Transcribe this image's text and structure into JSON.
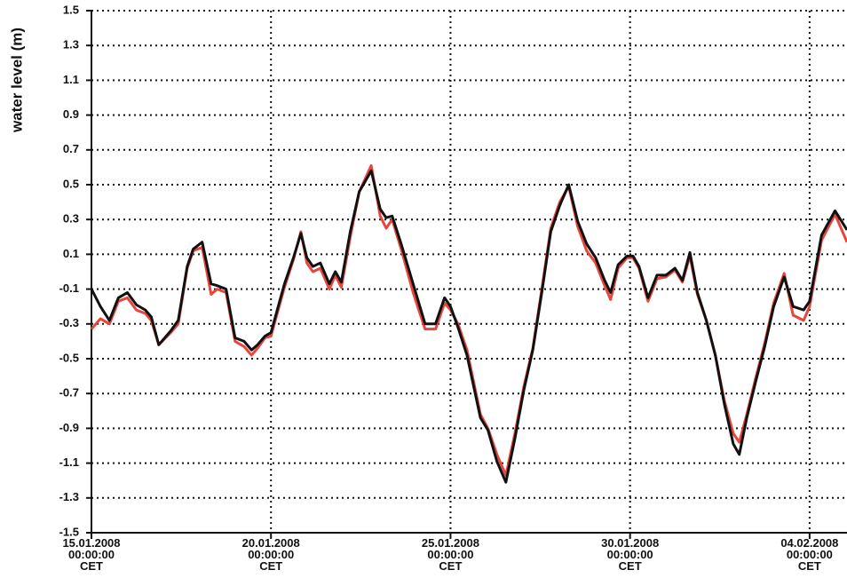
{
  "chart_data": {
    "type": "line",
    "ylabel": "water level (m)",
    "x": [
      "2008-01-15T00:00",
      "2008-01-15T06:00",
      "2008-01-15T12:00",
      "2008-01-15T18:00",
      "2008-01-16T00:00",
      "2008-01-16T06:00",
      "2008-01-16T12:00",
      "2008-01-16T16:00",
      "2008-01-16T21:00",
      "2008-01-17T05:00",
      "2008-01-17T10:00",
      "2008-01-17T16:00",
      "2008-01-17T20:00",
      "2008-01-18T02:00",
      "2008-01-18T08:00",
      "2008-01-18T12:00",
      "2008-01-18T18:00",
      "2008-01-19T00:00",
      "2008-01-19T06:00",
      "2008-01-19T11:00",
      "2008-01-19T15:00",
      "2008-01-19T20:00",
      "2008-01-20T00:00",
      "2008-01-20T09:00",
      "2008-01-20T15:00",
      "2008-01-20T20:00",
      "2008-01-21T00:00",
      "2008-01-21T04:00",
      "2008-01-21T09:00",
      "2008-01-21T15:00",
      "2008-01-21T19:00",
      "2008-01-21T23:00",
      "2008-01-22T05:00",
      "2008-01-22T11:00",
      "2008-01-22T19:00",
      "2008-01-23T01:00",
      "2008-01-23T05:00",
      "2008-01-23T09:00",
      "2008-01-23T15:00",
      "2008-01-23T23:00",
      "2008-01-24T07:00",
      "2008-01-24T14:00",
      "2008-01-24T20:00",
      "2008-01-25T00:00",
      "2008-01-25T05:00",
      "2008-01-25T11:00",
      "2008-01-25T20:00",
      "2008-01-26T01:00",
      "2008-01-26T07:00",
      "2008-01-26T13:00",
      "2008-01-26T19:00",
      "2008-01-27T01:00",
      "2008-01-27T07:00",
      "2008-01-27T13:00",
      "2008-01-27T19:00",
      "2008-01-28T01:00",
      "2008-01-28T07:00",
      "2008-01-28T13:00",
      "2008-01-28T19:00",
      "2008-01-29T01:00",
      "2008-01-29T07:00",
      "2008-01-29T11:00",
      "2008-01-29T16:00",
      "2008-01-29T22:00",
      "2008-01-30T02:00",
      "2008-01-30T06:00",
      "2008-01-30T12:00",
      "2008-01-30T18:00",
      "2008-01-31T00:00",
      "2008-01-31T06:00",
      "2008-01-31T11:00",
      "2008-01-31T16:00",
      "2008-01-31T21:00",
      "2008-02-01T03:00",
      "2008-02-01T09:00",
      "2008-02-01T15:00",
      "2008-02-01T21:00",
      "2008-02-02T01:00",
      "2008-02-02T06:00",
      "2008-02-02T12:00",
      "2008-02-02T18:00",
      "2008-02-03T00:00",
      "2008-02-03T07:00",
      "2008-02-03T13:00",
      "2008-02-03T20:00",
      "2008-02-04T00:00",
      "2008-02-04T08:00",
      "2008-02-04T17:00",
      "2008-02-05T01:00"
    ],
    "series": [
      {
        "color": "#e8453c",
        "values": [
          -0.33,
          -0.27,
          -0.3,
          -0.17,
          -0.15,
          -0.22,
          -0.24,
          -0.28,
          -0.42,
          -0.35,
          -0.3,
          0.02,
          0.12,
          0.14,
          -0.13,
          -0.1,
          -0.12,
          -0.4,
          -0.43,
          -0.48,
          -0.44,
          -0.38,
          -0.37,
          -0.09,
          0.07,
          0.23,
          0.05,
          0.0,
          0.02,
          -0.1,
          -0.02,
          -0.09,
          0.2,
          0.46,
          0.61,
          0.32,
          0.25,
          0.3,
          0.13,
          -0.12,
          -0.33,
          -0.33,
          -0.18,
          -0.22,
          -0.3,
          -0.45,
          -0.82,
          -0.9,
          -1.05,
          -1.17,
          -0.93,
          -0.66,
          -0.44,
          -0.1,
          0.25,
          0.4,
          0.49,
          0.26,
          0.12,
          0.05,
          -0.08,
          -0.16,
          0.02,
          0.08,
          0.08,
          0.02,
          -0.17,
          -0.04,
          -0.03,
          0.01,
          -0.06,
          0.09,
          -0.13,
          -0.28,
          -0.48,
          -0.74,
          -0.93,
          -0.98,
          -0.82,
          -0.61,
          -0.41,
          -0.18,
          -0.01,
          -0.25,
          -0.28,
          -0.2,
          0.18,
          0.33,
          0.17
        ]
      },
      {
        "color": "#111111",
        "values": [
          -0.1,
          -0.2,
          -0.28,
          -0.15,
          -0.12,
          -0.19,
          -0.22,
          -0.26,
          -0.42,
          -0.34,
          -0.28,
          0.03,
          0.13,
          0.17,
          -0.07,
          -0.08,
          -0.1,
          -0.38,
          -0.4,
          -0.45,
          -0.42,
          -0.37,
          -0.35,
          -0.07,
          0.08,
          0.22,
          0.08,
          0.03,
          0.05,
          -0.07,
          0.0,
          -0.06,
          0.23,
          0.46,
          0.58,
          0.36,
          0.31,
          0.32,
          0.16,
          -0.07,
          -0.3,
          -0.3,
          -0.15,
          -0.2,
          -0.32,
          -0.48,
          -0.84,
          -0.91,
          -1.09,
          -1.21,
          -0.96,
          -0.68,
          -0.45,
          -0.12,
          0.23,
          0.38,
          0.5,
          0.29,
          0.16,
          0.08,
          -0.05,
          -0.12,
          0.04,
          0.09,
          0.09,
          0.03,
          -0.15,
          -0.02,
          -0.02,
          0.02,
          -0.05,
          0.11,
          -0.12,
          -0.28,
          -0.48,
          -0.76,
          -0.99,
          -1.05,
          -0.84,
          -0.63,
          -0.43,
          -0.2,
          -0.03,
          -0.2,
          -0.22,
          -0.17,
          0.21,
          0.35,
          0.24
        ]
      }
    ],
    "xlim": [
      "2008-01-15T00:00",
      "2008-02-05T01:00"
    ],
    "xticks": [
      {
        "value": "2008-01-15T00:00",
        "label": [
          "15.01.2008",
          "00:00:00",
          "CET"
        ]
      },
      {
        "value": "2008-01-20T00:00",
        "label": [
          "20.01.2008",
          "00:00:00",
          "CET"
        ]
      },
      {
        "value": "2008-01-25T00:00",
        "label": [
          "25.01.2008",
          "00:00:00",
          "CET"
        ]
      },
      {
        "value": "2008-01-30T00:00",
        "label": [
          "30.01.2008",
          "00:00:00",
          "CET"
        ]
      },
      {
        "value": "2008-02-04T00:00",
        "label": [
          "04.02.2008",
          "00:00:00",
          "CET"
        ]
      }
    ],
    "ylim": [
      -1.5,
      1.5
    ],
    "yticks": [
      1.5,
      1.3,
      1.1,
      0.9,
      0.7,
      0.5,
      0.3,
      0.1,
      -0.1,
      -0.3,
      -0.5,
      -0.7,
      -0.9,
      -1.1,
      -1.3,
      -1.5
    ],
    "grid": true
  }
}
